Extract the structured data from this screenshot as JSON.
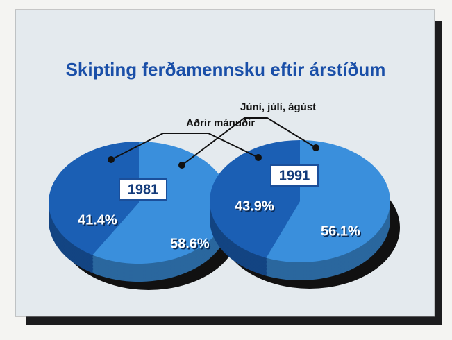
{
  "chart_data": {
    "type": "pie",
    "title": "Skipting ferðamennsku eftir árstíðum",
    "categories": [
      "Aðrir mánuðir",
      "Júní,  júlí, ágúst"
    ],
    "colors": [
      "#1b5fb4",
      "#3a8fdc"
    ],
    "series": [
      {
        "name": "1981",
        "values": [
          41.4,
          58.6
        ],
        "value_labels": [
          "41.4%",
          "58.6%"
        ]
      },
      {
        "name": "1991",
        "values": [
          43.9,
          56.1
        ],
        "value_labels": [
          "43.9%",
          "56.1%"
        ]
      }
    ]
  }
}
